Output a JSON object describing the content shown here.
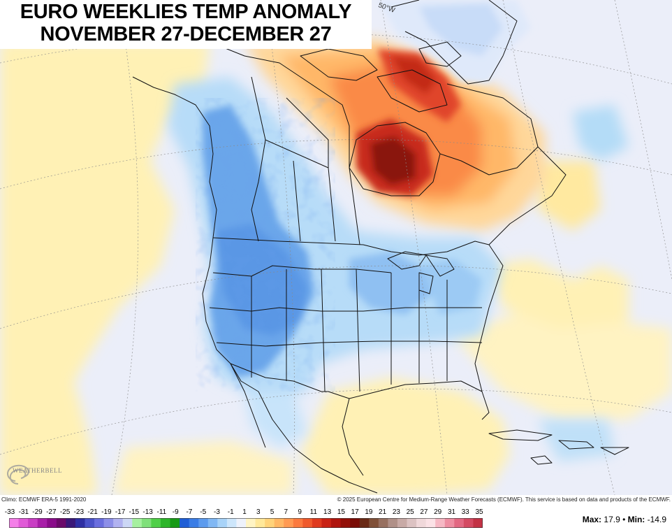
{
  "title": {
    "line1": "EURO WEEKLIES TEMP ANOMALY",
    "line2": "NOVEMBER 27-DECEMBER 27"
  },
  "map": {
    "region": "North America",
    "longitude_label": "50°W",
    "base_color": "#ebeef9",
    "anomaly_regions": [
      {
        "area": "Northeastern Canada / Hudson Bay / Baffin",
        "sign": "warm",
        "intensity": "strong"
      },
      {
        "area": "Western US and Canadian Rockies",
        "sign": "cold",
        "intensity": "moderate"
      },
      {
        "area": "Central and Eastern US",
        "sign": "cold",
        "intensity": "weak"
      },
      {
        "area": "Gulf of Mexico and Southeast US",
        "sign": "warm",
        "intensity": "weak"
      },
      {
        "area": "North Pacific",
        "sign": "warm",
        "intensity": "weak"
      },
      {
        "area": "Greenland",
        "sign": "cold",
        "intensity": "weak"
      }
    ]
  },
  "logo": {
    "text": "WEATHERBELL"
  },
  "credits": {
    "climo": "Climo: ECMWF ERA-5 1991-2020",
    "copyright": "© 2025 European Centre for Medium-Range Weather Forecasts (ECMWF). This service is based on data and products of the ECMWF."
  },
  "legend": {
    "ticks": [
      "-33",
      "-31",
      "-29",
      "-27",
      "-25",
      "-23",
      "-21",
      "-19",
      "-17",
      "-15",
      "-13",
      "-11",
      "-9",
      "-7",
      "-5",
      "-3",
      "-1",
      "1",
      "3",
      "5",
      "7",
      "9",
      "11",
      "13",
      "15",
      "17",
      "19",
      "21",
      "23",
      "25",
      "27",
      "29",
      "31",
      "33",
      "35"
    ],
    "colors": [
      "#f47fe8",
      "#e05ad7",
      "#c93ec4",
      "#a81ea8",
      "#8a0c8a",
      "#6b0a6a",
      "#3a1878",
      "#2e2fa3",
      "#4a52c8",
      "#6a6ede",
      "#8d8fe8",
      "#b1b2f0",
      "#ccd7f5",
      "#a6f0a0",
      "#7fe07a",
      "#4fcf48",
      "#2db52a",
      "#179a16",
      "#1f5fd6",
      "#3a7de6",
      "#5c9bee",
      "#81b8f4",
      "#a8d3f8",
      "#cde6fb",
      "#eef2fb",
      "#fff4c4",
      "#ffe89a",
      "#ffd37a",
      "#ffb764",
      "#ff9a52",
      "#fb7a3e",
      "#ef5a2c",
      "#df3a1e",
      "#c92214",
      "#b0150e",
      "#931008",
      "#7a0c06",
      "#6a2a16",
      "#805038",
      "#977060",
      "#b09088",
      "#c8aaa6",
      "#dcc2c2",
      "#f0d8da",
      "#fbe2e6",
      "#f6b8c4",
      "#ee8ea2",
      "#e26882",
      "#d44a62",
      "#c33245"
    ],
    "max_label": "Max:",
    "max_value": "17.9",
    "separator": "•",
    "min_label": "Min:",
    "min_value": "-14.9"
  }
}
